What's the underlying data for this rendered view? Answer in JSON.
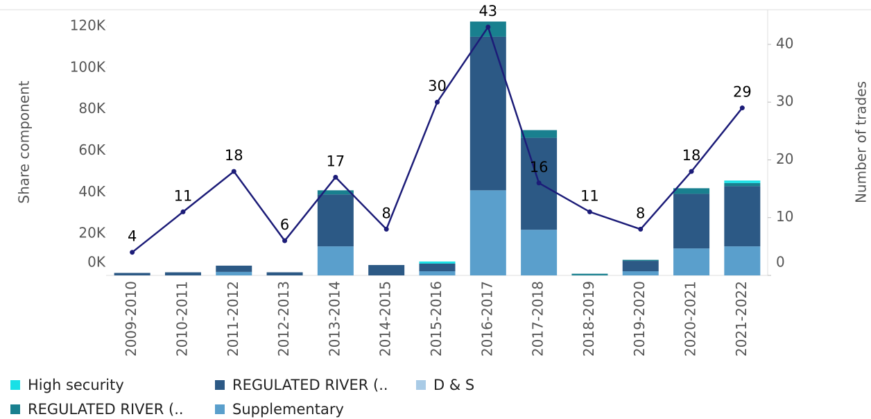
{
  "chart_data": {
    "type": "stacked-bar-line",
    "ylabel": "Share component",
    "y2label": "Number of trades",
    "categories": [
      "2009-2010",
      "2010-2011",
      "2011-2012",
      "2012-2013",
      "2013-2014",
      "2014-2015",
      "2015-2016",
      "2016-2017",
      "2017-2018",
      "2018-2019",
      "2019-2020",
      "2020-2021",
      "2021-2022"
    ],
    "series": [
      {
        "name": "Supplementary",
        "color": "#5a9fcc",
        "values": [
          0,
          0,
          1700,
          0,
          14000,
          0,
          2000,
          41000,
          22000,
          0,
          2000,
          13000,
          14000
        ]
      },
      {
        "name": "D & S",
        "color": "#a9cbe6",
        "values": [
          0,
          0,
          0,
          0,
          0,
          0,
          0,
          0,
          0,
          0,
          0,
          0,
          0
        ]
      },
      {
        "name": "REGULATED RIVER (..",
        "color": "#2c5985",
        "values": [
          1200,
          1500,
          3000,
          1500,
          25000,
          5000,
          3700,
          74000,
          44300,
          0,
          5000,
          26300,
          29000
        ]
      },
      {
        "name": "REGULATED RIVER (..",
        "color": "#19808f",
        "values": [
          0,
          0,
          0,
          0,
          2000,
          0,
          0,
          7300,
          3700,
          800,
          500,
          2700,
          1500
        ]
      },
      {
        "name": "High security",
        "color": "#19e0e6",
        "values": [
          0,
          0,
          0,
          0,
          0,
          0,
          1000,
          0,
          0,
          0,
          0,
          0,
          1200
        ]
      }
    ],
    "line": {
      "axis": "y2",
      "color": "#1c1c78",
      "values": [
        4,
        11,
        18,
        6,
        17,
        8,
        30,
        43,
        16,
        11,
        8,
        18,
        29
      ]
    },
    "ylim": [
      0,
      128000
    ],
    "yticks": [
      {
        "value": 0,
        "label": "0K"
      },
      {
        "value": 20000,
        "label": "20K"
      },
      {
        "value": 40000,
        "label": "40K"
      },
      {
        "value": 60000,
        "label": "60K"
      },
      {
        "value": 80000,
        "label": "80K"
      },
      {
        "value": 100000,
        "label": "100K"
      },
      {
        "value": 120000,
        "label": "120K"
      }
    ],
    "y2lim": [
      0,
      46
    ],
    "y2ticks": [
      0,
      10,
      20,
      30,
      40
    ],
    "legend": "bottom"
  }
}
